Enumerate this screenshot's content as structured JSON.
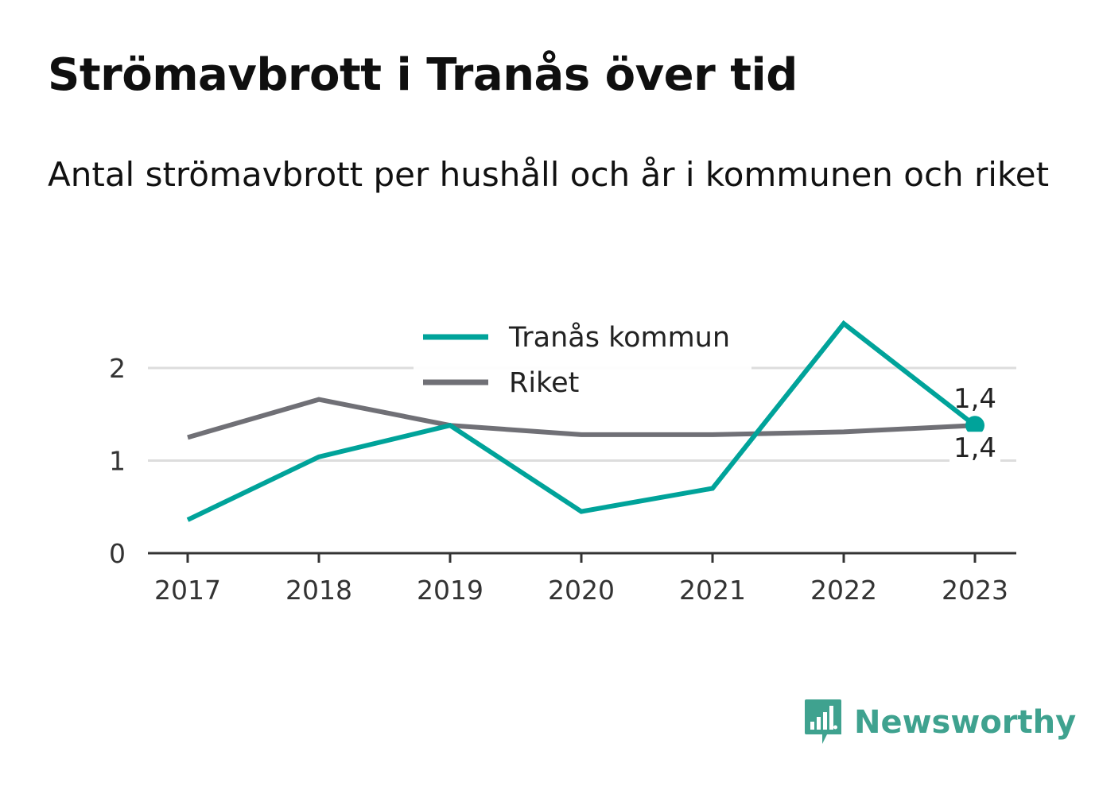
{
  "title": "Strömavbrott i Tranås över tid",
  "subtitle": "Antal strömavbrott per hushåll och år i kommunen och riket",
  "brand": {
    "name": "Newsworthy",
    "icon": "newsworthy-logo-icon",
    "color": "#3fa28f"
  },
  "chart_data": {
    "type": "line",
    "x": [
      "2017",
      "2018",
      "2019",
      "2020",
      "2021",
      "2022",
      "2023"
    ],
    "ylim": [
      0,
      2.5
    ],
    "yticks": [
      "0",
      "1",
      "2"
    ],
    "grid": true,
    "legend": "top-center",
    "series": [
      {
        "name": "Tranås kommun",
        "color": "#00a39a",
        "values": [
          0.36,
          1.04,
          1.38,
          0.45,
          0.7,
          2.48,
          1.38
        ]
      },
      {
        "name": "Riket",
        "color": "#707076",
        "values": [
          1.25,
          1.66,
          1.38,
          1.28,
          1.28,
          1.31,
          1.38
        ]
      }
    ],
    "annotations": [
      {
        "series": "Tranås kommun",
        "x": "2023",
        "label": "1,4",
        "position": "above"
      },
      {
        "series": "Riket",
        "x": "2023",
        "label": "1,4",
        "position": "below"
      }
    ]
  }
}
